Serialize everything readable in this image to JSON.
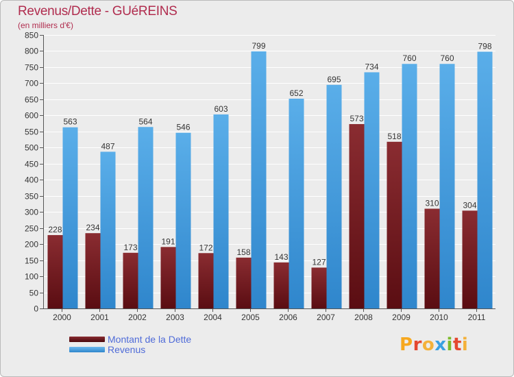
{
  "title": "Revenus/Dette - GUéREINS",
  "subtitle": "(en milliers d'€)",
  "brand": {
    "name": "Proxiti",
    "letter_colors": [
      "#f7a81e",
      "#e4472f",
      "#f4b13a",
      "#3aa0e0",
      "#7cbb2b",
      "#e4472f",
      "#f4b13a"
    ]
  },
  "colors": {
    "background": "#ececec",
    "grid": "#ffffff",
    "axis_text": "#333333",
    "dette": "#7a1e24",
    "revenus": "#4ea6e6"
  },
  "chart_data": {
    "type": "bar",
    "categories": [
      "2000",
      "2001",
      "2002",
      "2003",
      "2004",
      "2005",
      "2006",
      "2007",
      "2008",
      "2009",
      "2010",
      "2011"
    ],
    "series": [
      {
        "name": "Montant de la Dette",
        "values": [
          228,
          234,
          173,
          191,
          172,
          158,
          143,
          127,
          573,
          518,
          310,
          304
        ]
      },
      {
        "name": "Revenus",
        "values": [
          563,
          487,
          564,
          546,
          603,
          799,
          652,
          695,
          734,
          760,
          760,
          798
        ]
      }
    ],
    "ylim": [
      0,
      850
    ],
    "ytick_step": 50,
    "grid": true,
    "legend": "bottom-left"
  }
}
